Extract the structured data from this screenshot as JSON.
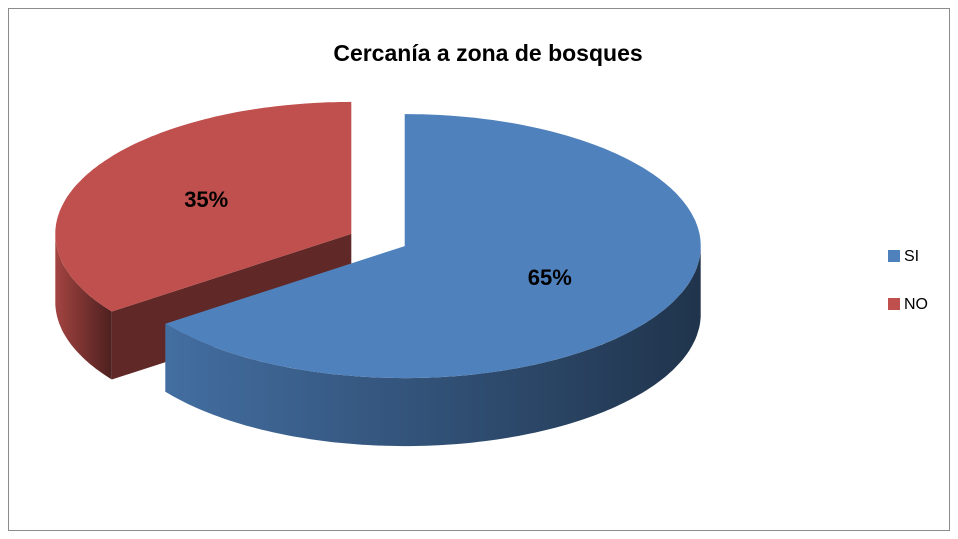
{
  "chart_data": {
    "type": "pie3d",
    "title": "Cercanía a zona de bosques",
    "categories": [
      "SI",
      "NO"
    ],
    "values": [
      65,
      35
    ],
    "value_labels": [
      "65%",
      "35%"
    ],
    "colors": [
      "#4f81bd",
      "#c0504d"
    ],
    "legend": "right"
  }
}
